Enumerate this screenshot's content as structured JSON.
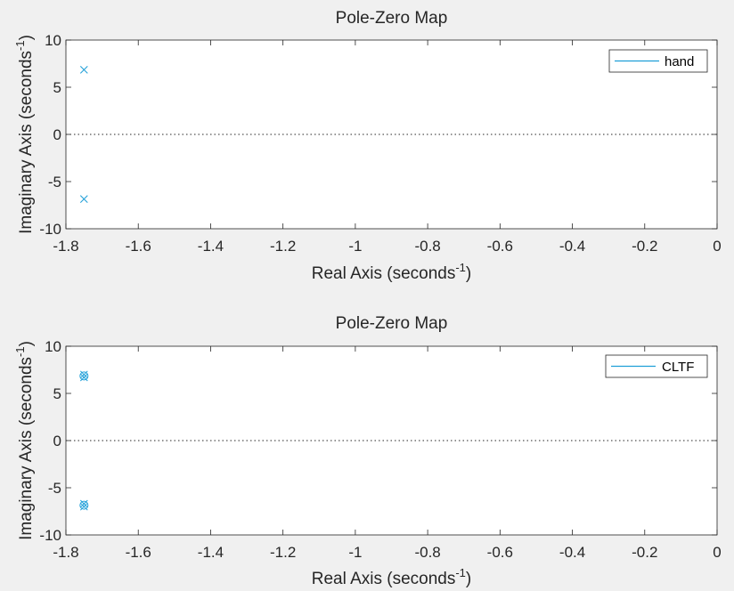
{
  "chart_data": [
    {
      "type": "scatter",
      "title": "Pole-Zero Map",
      "xlabel": "Real Axis (seconds",
      "xlabel_sup": "-1",
      "xlabel_close": ")",
      "ylabel": "Imaginary Axis (seconds",
      "ylabel_sup": "-1",
      "ylabel_close": ")",
      "xlim": [
        -1.8,
        0
      ],
      "ylim": [
        -10,
        10
      ],
      "xticks": [
        -1.8,
        -1.6,
        -1.4,
        -1.2,
        -1,
        -0.8,
        -0.6,
        -0.4,
        -0.2,
        0
      ],
      "xtick_labels": [
        "-1.8",
        "-1.6",
        "-1.4",
        "-1.2",
        "-1",
        "-0.8",
        "-0.6",
        "-0.4",
        "-0.2",
        "0"
      ],
      "yticks": [
        10,
        5,
        0,
        -5,
        -10
      ],
      "ytick_labels": [
        "10",
        "5",
        "0",
        "-5",
        "-10"
      ],
      "legend_position": "top-right",
      "series": [
        {
          "name": "hand",
          "color": "#1f9fd8",
          "poles": [
            [
              -1.75,
              6.85
            ],
            [
              -1.75,
              -6.85
            ]
          ],
          "zeros": []
        }
      ]
    },
    {
      "type": "scatter",
      "title": "Pole-Zero Map",
      "xlabel": "Real Axis (seconds",
      "xlabel_sup": "-1",
      "xlabel_close": ")",
      "ylabel": "Imaginary Axis (seconds",
      "ylabel_sup": "-1",
      "ylabel_close": ")",
      "xlim": [
        -1.8,
        0
      ],
      "ylim": [
        -10,
        10
      ],
      "xticks": [
        -1.8,
        -1.6,
        -1.4,
        -1.2,
        -1,
        -0.8,
        -0.6,
        -0.4,
        -0.2,
        0
      ],
      "xtick_labels": [
        "-1.8",
        "-1.6",
        "-1.4",
        "-1.2",
        "-1",
        "-0.8",
        "-0.6",
        "-0.4",
        "-0.2",
        "0"
      ],
      "yticks": [
        10,
        5,
        0,
        -5,
        -10
      ],
      "ytick_labels": [
        "10",
        "5",
        "0",
        "-5",
        "-10"
      ],
      "legend_position": "top-right",
      "series": [
        {
          "name": "CLTF",
          "color": "#1f9fd8",
          "poles": [
            [
              -1.75,
              7.0
            ],
            [
              -1.75,
              6.7
            ],
            [
              -1.75,
              -7.0
            ],
            [
              -1.75,
              -6.7
            ]
          ],
          "zeros": [
            [
              -1.75,
              6.85
            ],
            [
              -1.75,
              -6.85
            ]
          ]
        }
      ]
    }
  ]
}
